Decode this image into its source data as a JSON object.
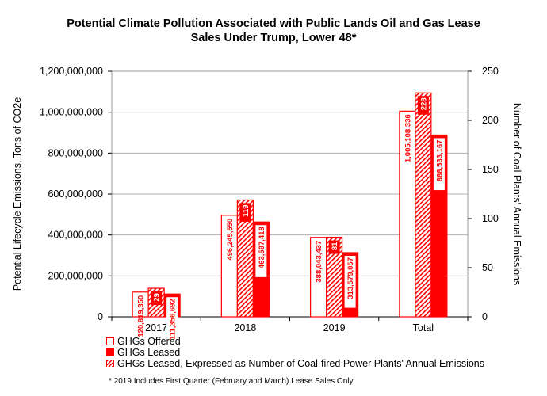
{
  "title_line1": "Potential Climate Pollution Associated with Public Lands Oil and Gas Lease",
  "title_line2": "Sales Under Trump, Lower 48*",
  "footnote": "* 2019 Includes First Quarter (February and March) Lease Sales Only",
  "legend": [
    {
      "label": "GHGs Offered",
      "swatch": "offered"
    },
    {
      "label": "GHGs Leased",
      "swatch": "leased"
    },
    {
      "label": "GHGs Leased, Expressed as Number of Coal-fired Power Plants' Annual Emissions",
      "swatch": "coal"
    }
  ],
  "colors": {
    "accent": "#ff0000",
    "grid": "#b0b0b0",
    "axis": "#000000"
  },
  "chart_data": {
    "type": "bar",
    "categories": [
      "2017",
      "2018",
      "2019",
      "Total"
    ],
    "series": [
      {
        "name": "GHGs Offered",
        "axis": "left",
        "style": "outline",
        "values": [
          120819350,
          496245550,
          388043437,
          1005108336
        ],
        "labels": [
          "120,819,350",
          "496,245,550",
          "388,043,437",
          "1,005,108,336"
        ]
      },
      {
        "name": "GHGs Leased, Expressed as Number of Coal-fired Power Plants' Annual Emissions",
        "axis": "right",
        "style": "hatched",
        "values": [
          29,
          119,
          81,
          228
        ],
        "labels": [
          "29",
          "119",
          "81",
          "228"
        ]
      },
      {
        "name": "GHGs Leased",
        "axis": "left",
        "style": "solid",
        "values": [
          111356692,
          463597418,
          313579057,
          888533167
        ],
        "labels": [
          "111,356,692",
          "463,597,418",
          "313,579,057",
          "888,533,167"
        ]
      }
    ],
    "ylabel": "Potential Lifecycle Emissions, Tons of CO2e",
    "y2label": "Number of Coal Plants' Annual Emissions",
    "ylim": [
      0,
      1200000000
    ],
    "y2lim": [
      0,
      250
    ],
    "yticks": [
      0,
      200000000,
      400000000,
      600000000,
      800000000,
      1000000000,
      1200000000
    ],
    "yticklabels": [
      "0",
      "200,000,000",
      "400,000,000",
      "600,000,000",
      "800,000,000",
      "1,000,000,000",
      "1,200,000,000"
    ],
    "y2ticks": [
      0,
      50,
      100,
      150,
      200,
      250
    ],
    "y2ticklabels": [
      "0",
      "50",
      "100",
      "150",
      "200",
      "250"
    ],
    "grid": "horizontal",
    "legend_position": "bottom"
  }
}
